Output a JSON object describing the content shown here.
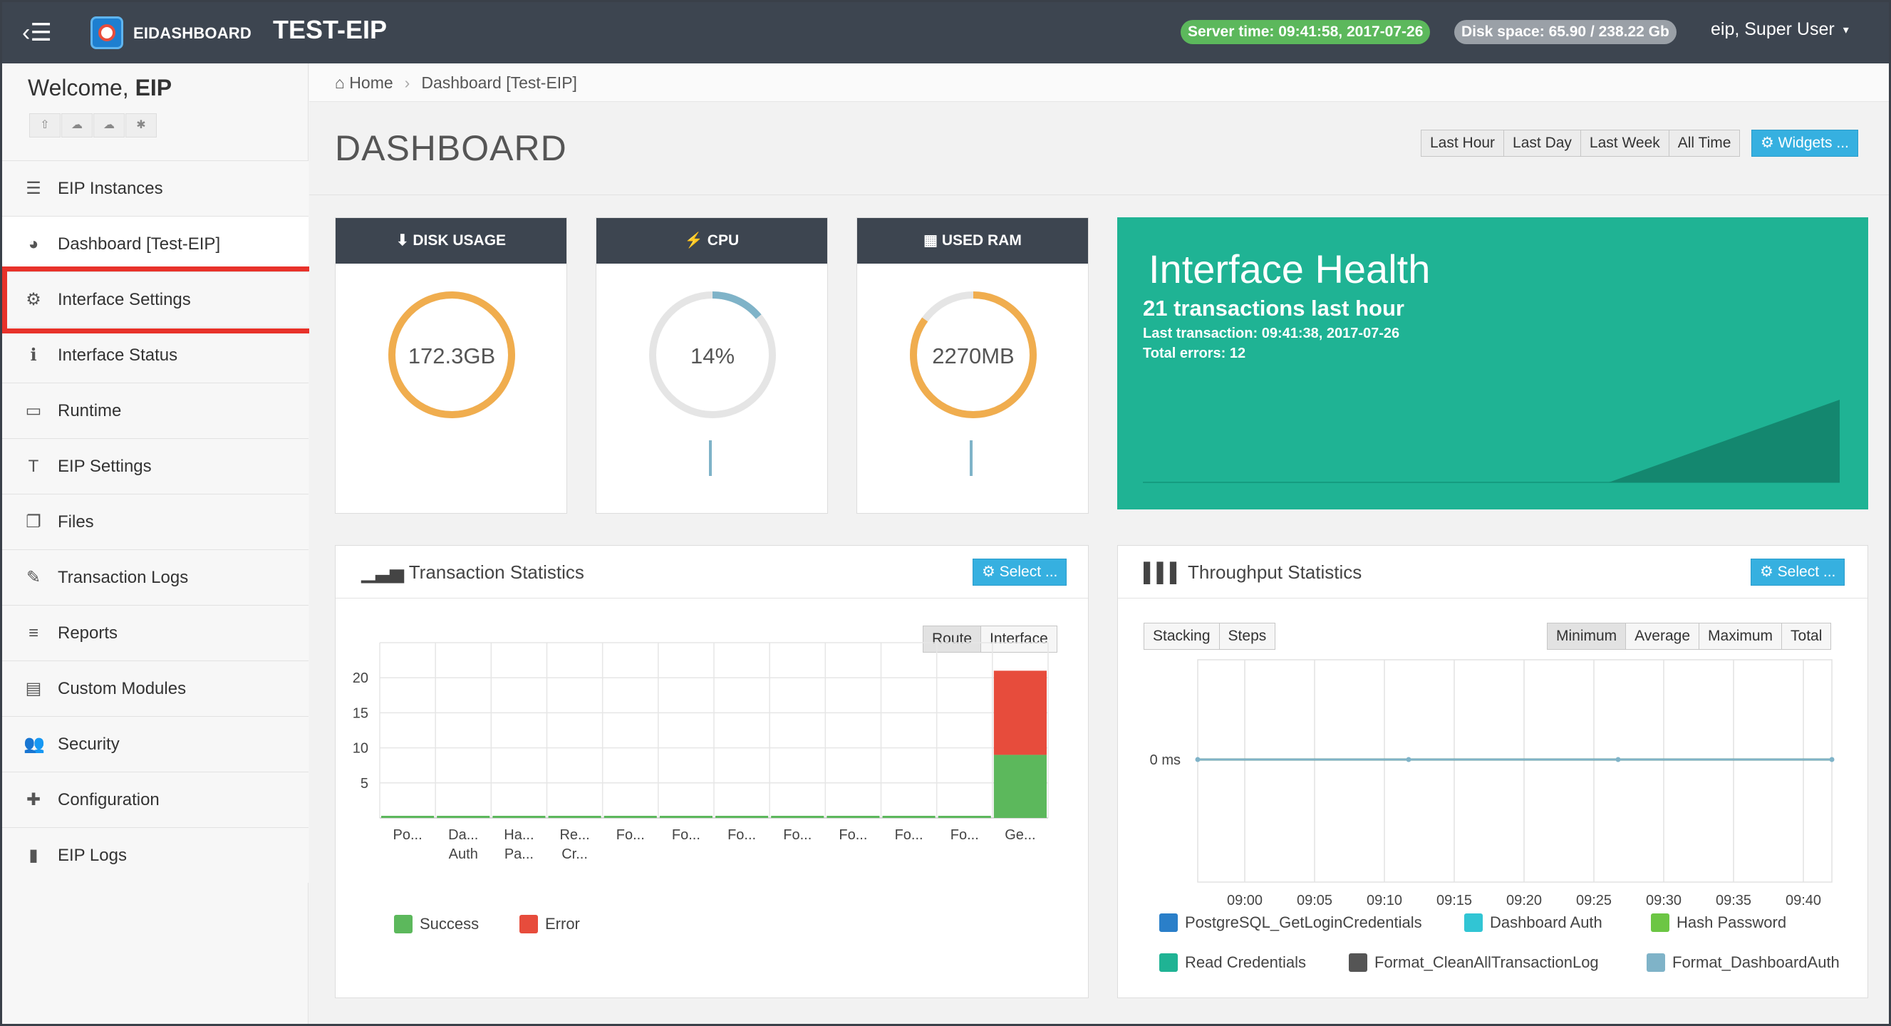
{
  "topbar": {
    "menu_icon": "arrow-left-menu-icon",
    "brand": "EIDASHBOARD",
    "instance": "TEST-EIP",
    "server_time": "Server time: 09:41:58, 2017-07-26",
    "disk_space": "Disk space: 65.90 / 238.22 Gb",
    "user": "eip, Super User",
    "user_caret": "▾"
  },
  "sidebar": {
    "welcome": "Welcome,",
    "welcome_name": "EIP",
    "quick_actions": [
      "upload-icon",
      "cloud-upload-icon",
      "cloud-download-icon",
      "bug-icon"
    ],
    "items": [
      {
        "label": "EIP Instances",
        "icon": "server-icon",
        "glyph": "☰"
      },
      {
        "label": "Dashboard [Test-EIP]",
        "icon": "dashboard-icon",
        "glyph": "◕"
      },
      {
        "label": "Interface Settings",
        "icon": "gears-icon",
        "glyph": "⚙"
      },
      {
        "label": "Interface Status",
        "icon": "info-icon",
        "glyph": "ℹ"
      },
      {
        "label": "Runtime",
        "icon": "monitor-icon",
        "glyph": "▭"
      },
      {
        "label": "EIP Settings",
        "icon": "text-icon",
        "glyph": "T"
      },
      {
        "label": "Files",
        "icon": "files-icon",
        "glyph": "❐"
      },
      {
        "label": "Transaction Logs",
        "icon": "edit-icon",
        "glyph": "✎"
      },
      {
        "label": "Reports",
        "icon": "list-icon",
        "glyph": "≡"
      },
      {
        "label": "Custom Modules",
        "icon": "list-alt-icon",
        "glyph": "▤"
      },
      {
        "label": "Security",
        "icon": "users-icon",
        "glyph": "👥"
      },
      {
        "label": "Configuration",
        "icon": "puzzle-icon",
        "glyph": "✚"
      },
      {
        "label": "EIP Logs",
        "icon": "file-icon",
        "glyph": "▮"
      }
    ]
  },
  "breadcrumb": {
    "home": "Home",
    "current": "Dashboard [Test-EIP]"
  },
  "page_title": "DASHBOARD",
  "time_ranges": [
    "Last Hour",
    "Last Day",
    "Last Week",
    "All Time"
  ],
  "widgets_button": "⚙ Widgets ...",
  "gauges": [
    {
      "title": "⬇ DISK USAGE",
      "value": "172.3GB",
      "fraction": 1.0
    },
    {
      "title": "⚡ CPU",
      "value": "14%",
      "fraction": 0.14
    },
    {
      "title": "▦ USED RAM",
      "value": "2270MB",
      "fraction": 0.85
    }
  ],
  "health": {
    "title": "Interface Health",
    "summary": "21 transactions last hour",
    "last_transaction": "Last transaction: 09:41:38, 2017-07-26",
    "errors": "Total errors: 12"
  },
  "transaction_panel": {
    "title": "Transaction Statistics",
    "select_label": "⚙ Select ...",
    "toggles": [
      "Route",
      "Interface"
    ]
  },
  "throughput_panel": {
    "title": "Throughput Statistics",
    "select_label": "⚙ Select ...",
    "left_toggles": [
      "Stacking",
      "Steps"
    ],
    "right_toggles": [
      "Minimum",
      "Average",
      "Maximum",
      "Total"
    ]
  },
  "chart_data": [
    {
      "type": "bar",
      "title": "Transaction Statistics",
      "stacked": true,
      "categories": [
        [
          "Po..."
        ],
        [
          "Da...",
          "Auth"
        ],
        [
          "Ha...",
          "Pa..."
        ],
        [
          "Re...",
          "Cr..."
        ],
        [
          "Fo..."
        ],
        [
          "Fo..."
        ],
        [
          "Fo..."
        ],
        [
          "Fo..."
        ],
        [
          "Fo..."
        ],
        [
          "Fo..."
        ],
        [
          "Fo..."
        ],
        [
          "Ge..."
        ]
      ],
      "series": [
        {
          "name": "Success",
          "color": "#5cb85c",
          "values": [
            0,
            0,
            0,
            0,
            0,
            0,
            0,
            0,
            0,
            0,
            0,
            9
          ]
        },
        {
          "name": "Error",
          "color": "#e74c3c",
          "values": [
            0,
            0,
            0,
            0,
            0,
            0,
            0,
            0,
            0,
            0,
            0,
            12
          ]
        }
      ],
      "yticks": [
        5,
        10,
        15,
        20
      ],
      "ylim": [
        0,
        25
      ],
      "grid": true,
      "legend": "bottom-left"
    },
    {
      "type": "line",
      "title": "Throughput Statistics",
      "x": [
        "09:00",
        "09:05",
        "09:10",
        "09:15",
        "09:20",
        "09:25",
        "09:30",
        "09:35",
        "09:40"
      ],
      "ytick_label": "0 ms",
      "series": [
        {
          "name": "PostgreSQL_GetLoginCredentials",
          "color": "#2a7fc9",
          "values": [
            0,
            0,
            0,
            0,
            0,
            0,
            0,
            0,
            0
          ]
        },
        {
          "name": "Dashboard Auth",
          "color": "#31c5d4",
          "values": [
            0,
            0,
            0,
            0,
            0,
            0,
            0,
            0,
            0
          ]
        },
        {
          "name": "Hash Password",
          "color": "#6cc644",
          "values": [
            0,
            0,
            0,
            0,
            0,
            0,
            0,
            0,
            0
          ]
        },
        {
          "name": "Read Credentials",
          "color": "#1fb394",
          "values": [
            0,
            0,
            0,
            0,
            0,
            0,
            0,
            0,
            0
          ]
        },
        {
          "name": "Format_CleanAllTransactionLog",
          "color": "#555555",
          "values": [
            0,
            0,
            0,
            0,
            0,
            0,
            0,
            0,
            0
          ]
        },
        {
          "name": "Format_DashboardAuth",
          "color": "#7fb3c8",
          "values": [
            0,
            0,
            0,
            0,
            0,
            0,
            0,
            0,
            0
          ]
        }
      ],
      "grid": true,
      "legend": "bottom"
    }
  ]
}
